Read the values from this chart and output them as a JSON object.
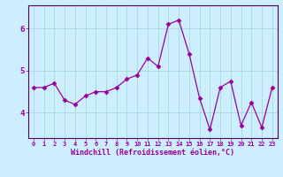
{
  "x": [
    0,
    1,
    2,
    3,
    4,
    5,
    6,
    7,
    8,
    9,
    10,
    11,
    12,
    13,
    14,
    15,
    16,
    17,
    18,
    19,
    20,
    21,
    22,
    23
  ],
  "y": [
    4.6,
    4.6,
    4.7,
    4.3,
    4.2,
    4.4,
    4.5,
    4.5,
    4.6,
    4.8,
    4.9,
    5.3,
    5.1,
    6.1,
    6.2,
    5.4,
    4.35,
    3.6,
    4.6,
    4.75,
    3.7,
    4.25,
    3.65,
    4.6
  ],
  "line_color": "#990099",
  "marker": "D",
  "marker_size": 2.5,
  "bg_color": "#cceeff",
  "grid_color": "#aadddd",
  "xlabel": "Windchill (Refroidissement éolien,°C)",
  "xlabel_color": "#990099",
  "tick_color": "#990099",
  "axis_color": "#777777",
  "ylim": [
    3.4,
    6.55
  ],
  "xlim": [
    -0.5,
    23.5
  ],
  "yticks": [
    4,
    5,
    6
  ],
  "xticks": [
    0,
    1,
    2,
    3,
    4,
    5,
    6,
    7,
    8,
    9,
    10,
    11,
    12,
    13,
    14,
    15,
    16,
    17,
    18,
    19,
    20,
    21,
    22,
    23
  ]
}
